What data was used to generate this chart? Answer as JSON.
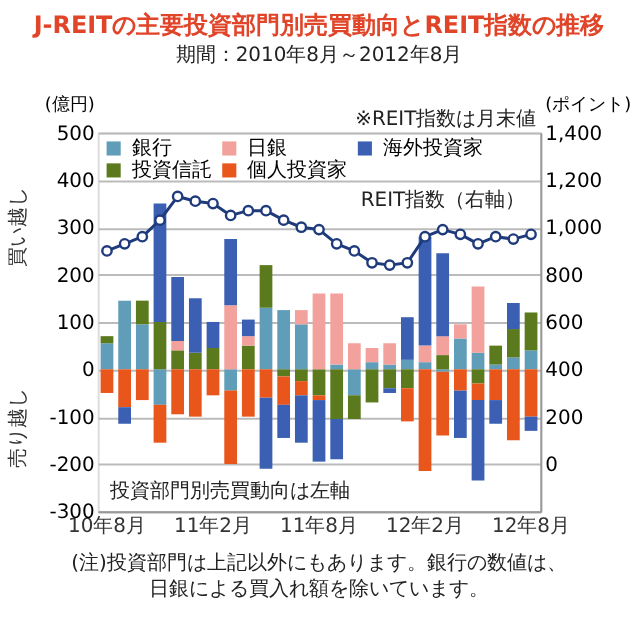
{
  "chart_data": {
    "type": "bar",
    "stacked": true,
    "title": "J-REITの主要投資部門別売買動向とREIT指数の推移",
    "subtitle": "期間：2010年8月～2012年8月",
    "ylabel": "(億円)",
    "y2label": "(ポイント)",
    "categories": [
      "10年8月",
      null,
      null,
      null,
      null,
      null,
      "11年2月",
      null,
      null,
      null,
      null,
      null,
      "11年8月",
      null,
      null,
      null,
      null,
      null,
      "12年2月",
      null,
      null,
      null,
      null,
      null,
      "12年8月"
    ],
    "series": [
      {
        "name": "銀行",
        "color": "#5f9db8",
        "values": [
          55,
          145,
          95,
          -75,
          null,
          null,
          null,
          -45,
          null,
          130,
          125,
          95,
          null,
          10,
          -55,
          15,
          10,
          20,
          15,
          -5,
          65,
          35,
          10,
          25,
          40
        ]
      },
      {
        "name": "投資信託",
        "color": "#5b7a1e",
        "values": [
          15,
          null,
          50,
          100,
          40,
          35,
          45,
          null,
          50,
          90,
          -15,
          -25,
          -55,
          -105,
          -50,
          -70,
          -40,
          -40,
          null,
          30,
          null,
          -30,
          40,
          60,
          80
        ]
      },
      {
        "name": "日銀",
        "color": "#f2a19c",
        "values": [
          null,
          null,
          null,
          null,
          20,
          null,
          null,
          135,
          20,
          null,
          null,
          30,
          160,
          150,
          55,
          30,
          45,
          null,
          35,
          40,
          30,
          140,
          null,
          null,
          null
        ]
      },
      {
        "name": "個人投資家",
        "color": "#e8561c",
        "values": [
          -50,
          -80,
          -65,
          -80,
          -95,
          -100,
          -55,
          -155,
          -100,
          -60,
          -60,
          -30,
          -10,
          null,
          null,
          null,
          null,
          -70,
          -215,
          -135,
          -45,
          -35,
          -65,
          -150,
          -100
        ]
      },
      {
        "name": "海外投資家",
        "color": "#3a5fb3",
        "values": [
          null,
          -35,
          null,
          250,
          135,
          115,
          55,
          140,
          35,
          -150,
          -70,
          -100,
          -130,
          -85,
          null,
          null,
          -10,
          90,
          230,
          175,
          -100,
          -170,
          -50,
          55,
          -30
        ]
      },
      {
        "name": "REIT指数（右軸）",
        "type": "line",
        "axis": "y2",
        "color": "#1f3b7c",
        "marker": "circle",
        "values": [
          900,
          930,
          960,
          1030,
          1130,
          1110,
          1100,
          1050,
          1070,
          1070,
          1030,
          1000,
          990,
          930,
          900,
          850,
          840,
          850,
          960,
          990,
          970,
          930,
          960,
          950,
          970
        ]
      }
    ],
    "ylim": [
      -300,
      500
    ],
    "yticks": [
      -300,
      -200,
      -100,
      0,
      100,
      200,
      300,
      400,
      500
    ],
    "y2lim": [
      -200,
      1400
    ],
    "y2ticks": [
      {
        "value": -200,
        "label": null
      },
      0,
      {
        "value": 200,
        "label": "200"
      },
      {
        "value": 400,
        "label": "400"
      },
      {
        "value": 600,
        "label": "600"
      },
      {
        "value": 800,
        "label": "800"
      },
      {
        "value": 1000,
        "label": "1,000"
      },
      {
        "value": 1200,
        "label": "1,200"
      },
      {
        "value": 1400,
        "label": "1,400"
      }
    ],
    "grid": "y",
    "legend": "top left",
    "annotations": [
      "買い越し",
      "売り越し",
      "投資部門別売買動向は左軸",
      "※REIT指数は月末値",
      "(注)投資部門は上記以外にもあります。銀行の数値は、日銀による買入れ額を除いています。"
    ]
  }
}
